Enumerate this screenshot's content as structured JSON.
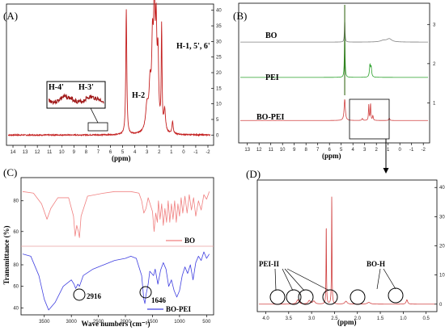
{
  "chart_data": [
    {
      "type": "line",
      "panel_label": "(A)",
      "xlabel": "(ppm)",
      "x_ticks": [
        14,
        13,
        12,
        11,
        10,
        9,
        8,
        7,
        6,
        5,
        4,
        3,
        2,
        1,
        0,
        -1,
        -2
      ],
      "y_ticks": [
        0,
        5,
        10,
        15,
        20,
        25,
        30,
        35,
        40
      ],
      "xlim": [
        14.4,
        -2.2
      ],
      "ylim": [
        -2,
        42
      ],
      "peaks": [
        {
          "x": 4.7,
          "y": 40,
          "w": 0.05
        },
        {
          "x": 3.0,
          "y": 8,
          "w": 0.14
        },
        {
          "x": 2.75,
          "y": 13,
          "w": 0.1
        },
        {
          "x": 2.55,
          "y": 25,
          "w": 0.08
        },
        {
          "x": 2.4,
          "y": 37,
          "w": 0.07
        },
        {
          "x": 2.25,
          "y": 29,
          "w": 0.07
        },
        {
          "x": 2.1,
          "y": 22,
          "w": 0.07
        },
        {
          "x": 1.8,
          "y": 33,
          "w": 0.04
        },
        {
          "x": 1.55,
          "y": 7,
          "w": 0.08
        },
        {
          "x": 0.9,
          "y": 4,
          "w": 0.06
        }
      ],
      "annotations": [
        "H-4'",
        "H-3'",
        "H-2",
        "H-1, 5', 6'"
      ]
    },
    {
      "type": "line",
      "panel_label": "(B)",
      "xlabel": "(ppm)",
      "x_ticks": [
        13,
        12,
        11,
        10,
        9,
        8,
        7,
        6,
        5,
        4,
        3,
        2,
        1,
        0,
        -1,
        -2
      ],
      "y_ticks": [
        1,
        2,
        3
      ],
      "xlim": [
        13.6,
        -2.4
      ],
      "series": [
        {
          "name": "BO",
          "color": "#808080",
          "offset": 2.55,
          "peaks": [
            {
              "x": 4.7,
              "y": 0.6,
              "w": 0.03
            },
            {
              "x": 1.4,
              "y": 0.04,
              "w": 0.3
            },
            {
              "x": 0.9,
              "y": 0.08,
              "w": 0.25
            }
          ]
        },
        {
          "name": "PEI",
          "color": "#2aa02a",
          "offset": 1.65,
          "peaks": [
            {
              "x": 4.7,
              "y": 1.3,
              "w": 0.03
            },
            {
              "x": 2.55,
              "y": 0.3,
              "w": 0.05
            },
            {
              "x": 2.45,
              "y": 0.25,
              "w": 0.05
            }
          ]
        },
        {
          "name": "BO-PEI",
          "color": "#d04040",
          "offset": 0.55,
          "peaks": [
            {
              "x": 4.7,
              "y": 0.55,
              "w": 0.06
            },
            {
              "x": 2.65,
              "y": 0.4,
              "w": 0.03
            },
            {
              "x": 2.5,
              "y": 0.45,
              "w": 0.03
            },
            {
              "x": 2.3,
              "y": 0.12,
              "w": 0.04
            },
            {
              "x": 3.2,
              "y": 0.05,
              "w": 0.05
            },
            {
              "x": 0.9,
              "y": 0.06,
              "w": 0.05
            }
          ]
        }
      ]
    },
    {
      "type": "line",
      "panel_label": "(C)",
      "xlabel": "Wave numbers (cm⁻¹)",
      "ylabel": "Transmittance  (%)",
      "x_ticks": [
        3500,
        3000,
        2500,
        2000,
        1500,
        1000,
        500
      ],
      "xlim": [
        3900,
        400
      ],
      "series": [
        {
          "name": "BO",
          "color": "#f08080",
          "y_ticks": [
            60,
            80
          ],
          "ylim": [
            52,
            93
          ],
          "points": [
            [
              3900,
              86
            ],
            [
              3700,
              85
            ],
            [
              3550,
              78
            ],
            [
              3450,
              68
            ],
            [
              3380,
              75
            ],
            [
              3250,
              82
            ],
            [
              3050,
              82
            ],
            [
              2960,
              70
            ],
            [
              2930,
              57
            ],
            [
              2900,
              64
            ],
            [
              2870,
              60
            ],
            [
              2850,
              56
            ],
            [
              2820,
              70
            ],
            [
              2700,
              83
            ],
            [
              2400,
              85
            ],
            [
              2200,
              86
            ],
            [
              1900,
              86
            ],
            [
              1750,
              85
            ],
            [
              1700,
              80
            ],
            [
              1660,
              72
            ],
            [
              1620,
              75
            ],
            [
              1580,
              82
            ],
            [
              1500,
              73
            ],
            [
              1470,
              60
            ],
            [
              1440,
              72
            ],
            [
              1410,
              66
            ],
            [
              1390,
              80
            ],
            [
              1360,
              68
            ],
            [
              1330,
              78
            ],
            [
              1300,
              64
            ],
            [
              1270,
              75
            ],
            [
              1240,
              66
            ],
            [
              1210,
              80
            ],
            [
              1180,
              66
            ],
            [
              1150,
              78
            ],
            [
              1120,
              68
            ],
            [
              1090,
              80
            ],
            [
              1060,
              66
            ],
            [
              1030,
              78
            ],
            [
              1000,
              70
            ],
            [
              970,
              82
            ],
            [
              940,
              72
            ],
            [
              900,
              83
            ],
            [
              860,
              72
            ],
            [
              820,
              84
            ],
            [
              780,
              74
            ],
            [
              740,
              82
            ],
            [
              700,
              70
            ],
            [
              650,
              80
            ],
            [
              600,
              74
            ],
            [
              550,
              84
            ],
            [
              500,
              81
            ],
            [
              450,
              86
            ]
          ]
        },
        {
          "name": "BO-PEI",
          "color": "#4040e0",
          "y_ticks": [
            40,
            60,
            80
          ],
          "ylim": [
            35,
            95
          ],
          "points": [
            [
              3900,
              90
            ],
            [
              3750,
              88
            ],
            [
              3600,
              70
            ],
            [
              3500,
              48
            ],
            [
              3420,
              38
            ],
            [
              3300,
              45
            ],
            [
              3150,
              60
            ],
            [
              3000,
              66
            ],
            [
              2950,
              62
            ],
            [
              2920,
              58
            ],
            [
              2880,
              62
            ],
            [
              2850,
              60
            ],
            [
              2780,
              70
            ],
            [
              2600,
              76
            ],
            [
              2400,
              80
            ],
            [
              2200,
              84
            ],
            [
              2000,
              86
            ],
            [
              1900,
              88
            ],
            [
              1800,
              86
            ],
            [
              1700,
              70
            ],
            [
              1660,
              48
            ],
            [
              1640,
              44
            ],
            [
              1620,
              52
            ],
            [
              1580,
              62
            ],
            [
              1550,
              74
            ],
            [
              1480,
              70
            ],
            [
              1450,
              76
            ],
            [
              1400,
              62
            ],
            [
              1350,
              75
            ],
            [
              1300,
              82
            ],
            [
              1250,
              76
            ],
            [
              1200,
              60
            ],
            [
              1150,
              66
            ],
            [
              1100,
              56
            ],
            [
              1050,
              50
            ],
            [
              1000,
              56
            ],
            [
              950,
              70
            ],
            [
              900,
              78
            ],
            [
              850,
              72
            ],
            [
              800,
              80
            ],
            [
              750,
              66
            ],
            [
              700,
              82
            ],
            [
              650,
              88
            ],
            [
              600,
              84
            ],
            [
              550,
              92
            ],
            [
              500,
              86
            ],
            [
              450,
              90
            ]
          ]
        }
      ],
      "annotations": [
        "2916",
        "1646"
      ]
    },
    {
      "type": "line",
      "panel_label": "(D)",
      "xlabel": "(ppm)",
      "x_ticks": [
        4.0,
        3.5,
        3.0,
        2.5,
        2.0,
        1.5,
        1.0,
        0.5
      ],
      "x_tick_labels": [
        "4.0",
        "3.5",
        "3.0",
        "2.5",
        "2.0",
        "1.5",
        "1.0",
        "0.5"
      ],
      "y_ticks": [
        0,
        10,
        20,
        30,
        40
      ],
      "xlim": [
        4.15,
        0.3
      ],
      "ylim": [
        -2,
        42
      ],
      "peaks": [
        {
          "x": 2.68,
          "y": 27,
          "w": 0.006
        },
        {
          "x": 2.56,
          "y": 37,
          "w": 0.006
        },
        {
          "x": 3.3,
          "y": 1.5,
          "w": 0.03
        },
        {
          "x": 3.05,
          "y": 1.2,
          "w": 0.03
        },
        {
          "x": 2.95,
          "y": 1.0,
          "w": 0.03
        },
        {
          "x": 2.25,
          "y": 1.0,
          "w": 0.03
        },
        {
          "x": 1.75,
          "y": 0.6,
          "w": 0.04
        },
        {
          "x": 0.92,
          "y": 1.5,
          "w": 0.02
        }
      ],
      "annotations": [
        "PEI-II",
        "BO-H"
      ]
    }
  ]
}
